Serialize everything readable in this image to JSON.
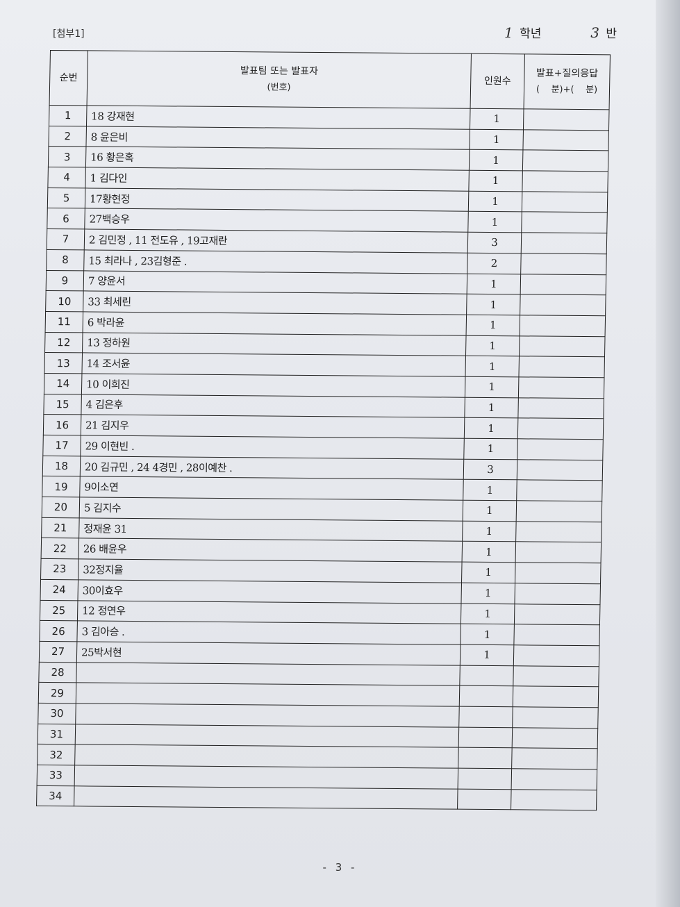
{
  "header": {
    "attachment": "[첨부1]",
    "grade_value": "1",
    "grade_label": "학년",
    "class_value": "3",
    "class_label": "반"
  },
  "table": {
    "col_order": "순번",
    "col_team_line1": "발표팀 또는 발표자",
    "col_team_line2": "(번호)",
    "col_count": "인원수",
    "col_time_line1": "발표+질의응답",
    "col_time_line2": "(    분)+(    분)",
    "rows": [
      {
        "no": "1",
        "team": "18 강재현",
        "count": "1",
        "time": ""
      },
      {
        "no": "2",
        "team": "8 윤은비",
        "count": "1",
        "time": ""
      },
      {
        "no": "3",
        "team": "16 황은혹",
        "count": "1",
        "time": ""
      },
      {
        "no": "4",
        "team": "1  김다인",
        "count": "1",
        "time": ""
      },
      {
        "no": "5",
        "team": "17황현정",
        "count": "1",
        "time": ""
      },
      {
        "no": "6",
        "team": "27백승우",
        "count": "1",
        "time": ""
      },
      {
        "no": "7",
        "team": "2 김민정 , 11 전도유 , 19고재란",
        "count": "3",
        "time": ""
      },
      {
        "no": "8",
        "team": "15 최라나 , 23김형준 .",
        "count": "2",
        "time": ""
      },
      {
        "no": "9",
        "team": " 7 양윤서",
        "count": "1",
        "time": ""
      },
      {
        "no": "10",
        "team": "33 최세린",
        "count": "1",
        "time": ""
      },
      {
        "no": "11",
        "team": "6 박라윤",
        "count": "1",
        "time": ""
      },
      {
        "no": "12",
        "team": "13 정하원",
        "count": "1",
        "time": ""
      },
      {
        "no": "13",
        "team": "14 조서윤",
        "count": "1",
        "time": ""
      },
      {
        "no": "14",
        "team": "10 이희진",
        "count": "1",
        "time": ""
      },
      {
        "no": "15",
        "team": "4  김은후",
        "count": "1",
        "time": ""
      },
      {
        "no": "16",
        "team": "21  김지우",
        "count": "1",
        "time": ""
      },
      {
        "no": "17",
        "team": "29 이현빈 .",
        "count": "1",
        "time": ""
      },
      {
        "no": "18",
        "team": "20 김규민 , 24 4경민 , 28이예찬 .",
        "count": "3",
        "time": ""
      },
      {
        "no": "19",
        "team": "9이소연",
        "count": "1",
        "time": ""
      },
      {
        "no": "20",
        "team": " 5 김지수",
        "count": "1",
        "time": ""
      },
      {
        "no": "21",
        "team": "정재윤 31",
        "count": "1",
        "time": ""
      },
      {
        "no": "22",
        "team": "26 배윤우",
        "count": "1",
        "time": ""
      },
      {
        "no": "23",
        "team": "32정지율",
        "count": "1",
        "time": ""
      },
      {
        "no": "24",
        "team": "30이효우",
        "count": "1",
        "time": ""
      },
      {
        "no": "25",
        "team": "12 정연우",
        "count": "1",
        "time": ""
      },
      {
        "no": "26",
        "team": "3 김아승 .",
        "count": "1",
        "time": ""
      },
      {
        "no": "27",
        "team": "25박서현",
        "count": "1",
        "time": ""
      },
      {
        "no": "28",
        "team": "",
        "count": "",
        "time": ""
      },
      {
        "no": "29",
        "team": "",
        "count": "",
        "time": ""
      },
      {
        "no": "30",
        "team": "",
        "count": "",
        "time": ""
      },
      {
        "no": "31",
        "team": "",
        "count": "",
        "time": ""
      },
      {
        "no": "32",
        "team": "",
        "count": "",
        "time": ""
      },
      {
        "no": "33",
        "team": "",
        "count": "",
        "time": ""
      },
      {
        "no": "34",
        "team": "",
        "count": "",
        "time": ""
      }
    ]
  },
  "footer": {
    "page": "- 3 -"
  }
}
